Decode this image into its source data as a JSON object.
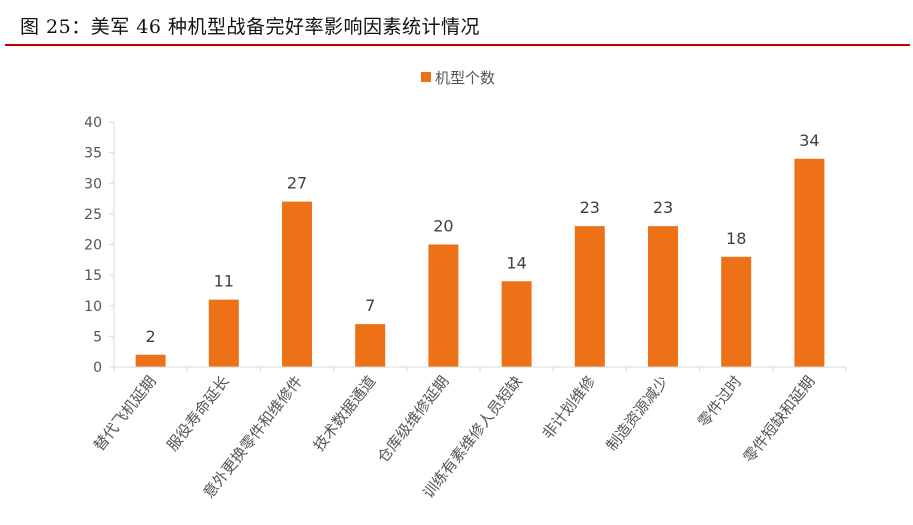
{
  "figure": {
    "title": "图 25：美军 46 种机型战备完好率影响因素统计情况"
  },
  "colors": {
    "bar": "#ED7117",
    "title_rule": "#C00000",
    "axis": "#D9D9D9"
  },
  "chart_data": {
    "type": "bar",
    "categories": [
      "替代飞机延期",
      "服役寿命延长",
      "意外更换零件和维修件",
      "技术数据通道",
      "仓库级维修延期",
      "训练有素维修人员短缺",
      "非计划维修",
      "制造资源减少",
      "零件过时",
      "零件短缺和延期"
    ],
    "series": [
      {
        "name": "机型个数",
        "values": [
          2,
          11,
          27,
          7,
          20,
          14,
          23,
          23,
          18,
          34
        ]
      }
    ],
    "ylim": [
      0,
      40
    ],
    "yticks": [
      0,
      5,
      10,
      15,
      20,
      25,
      30,
      35,
      40
    ],
    "data_labels": true,
    "legend_position": "top-center",
    "grid": false
  }
}
